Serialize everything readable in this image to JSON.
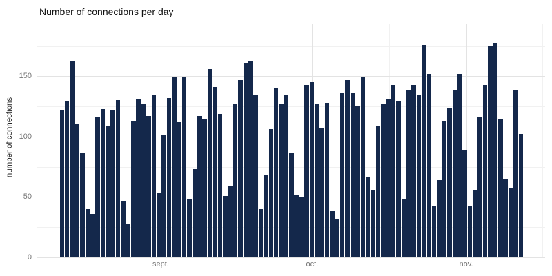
{
  "chart_data": {
    "type": "bar",
    "title": "Number of connections per day",
    "xlabel": "",
    "ylabel": "number of connections",
    "legend": false,
    "grid": true,
    "ylim": [
      0,
      193
    ],
    "y_ticks": [
      0,
      50,
      100,
      150
    ],
    "y_minor_ticks": [
      25,
      75,
      125,
      175
    ],
    "x_ticks": [
      {
        "label": "sept.",
        "day": 19.8
      },
      {
        "label": "oct.",
        "day": 49.5
      },
      {
        "label": "nov.",
        "day": 79.7
      }
    ],
    "x_minor_tick_days": [
      5.4,
      34.65,
      64.55,
      94.6
    ],
    "values": [
      122,
      129,
      163,
      111,
      86,
      40,
      36,
      116,
      123,
      109,
      122,
      130,
      46,
      28,
      113,
      131,
      127,
      117,
      135,
      53,
      101,
      132,
      149,
      112,
      149,
      48,
      73,
      117,
      115,
      156,
      141,
      119,
      51,
      59,
      127,
      147,
      161,
      163,
      134,
      40,
      68,
      106,
      140,
      127,
      134,
      86,
      52,
      50,
      143,
      145,
      127,
      107,
      128,
      38,
      32,
      136,
      147,
      136,
      125,
      149,
      66,
      56,
      109,
      127,
      131,
      143,
      129,
      48,
      138,
      143,
      135,
      176,
      152,
      43,
      64,
      113,
      124,
      138,
      152,
      89,
      43,
      56,
      116,
      143,
      175,
      177,
      114,
      65,
      57,
      138,
      102
    ]
  },
  "colors": {
    "bar": "#14284b",
    "grid_major": "#e3e3e3",
    "grid_minor": "#f1f1f1",
    "tick_label": "#757575",
    "axis_title": "#262626",
    "title": "#111111",
    "background": "#ffffff"
  }
}
